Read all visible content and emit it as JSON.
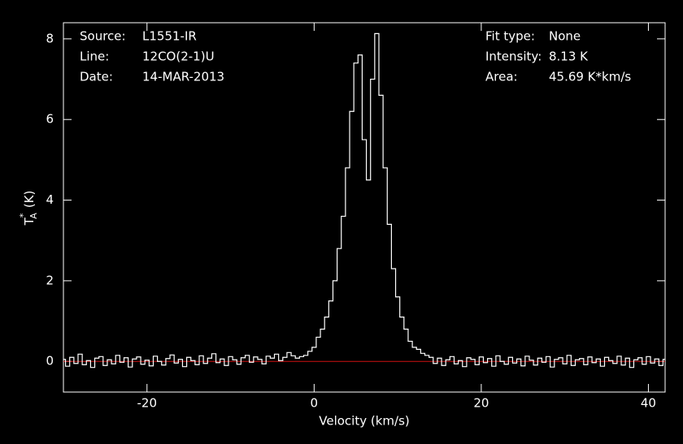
{
  "chart_data": {
    "type": "step",
    "xlabel": "Velocity (km/s)",
    "ylabel": {
      "base": "T",
      "sub": "A",
      "sup": "*",
      "unit": "(K)"
    },
    "annotations_left": [
      {
        "label": "Source:",
        "value": "L1551-IR"
      },
      {
        "label": "Line:",
        "value": "12CO(2-1)U"
      },
      {
        "label": "Date:",
        "value": "14-MAR-2013"
      }
    ],
    "annotations_right": [
      {
        "label": "Fit type:",
        "value": "None"
      },
      {
        "label": "Intensity:",
        "value": "8.13 K"
      },
      {
        "label": "Area:",
        "value": "45.69 K*km/s"
      }
    ],
    "xlim": [
      -30,
      42
    ],
    "ylim": [
      -0.76,
      8.4
    ],
    "xticks": [
      -20,
      0,
      20,
      40
    ],
    "yticks": [
      0,
      2,
      4,
      6,
      8
    ],
    "baseline": {
      "value": 0,
      "color": "#d01010"
    },
    "x": [
      -30,
      -29.5,
      -29,
      -28.5,
      -28,
      -27.5,
      -27,
      -26.5,
      -26,
      -25.5,
      -25,
      -24.5,
      -24,
      -23.5,
      -23,
      -22.5,
      -22,
      -21.5,
      -21,
      -20.5,
      -20,
      -19.5,
      -19,
      -18.5,
      -18,
      -17.5,
      -17,
      -16.5,
      -16,
      -15.5,
      -15,
      -14.5,
      -14,
      -13.5,
      -13,
      -12.5,
      -12,
      -11.5,
      -11,
      -10.5,
      -10,
      -9.5,
      -9,
      -8.5,
      -8,
      -7.5,
      -7,
      -6.5,
      -6,
      -5.5,
      -5,
      -4.5,
      -4,
      -3.5,
      -3,
      -2.5,
      -2,
      -1.5,
      -1,
      -0.5,
      0,
      0.5,
      1,
      1.5,
      2,
      2.5,
      3,
      3.5,
      4,
      4.5,
      5,
      5.5,
      6,
      6.5,
      7,
      7.5,
      8,
      8.5,
      9,
      9.5,
      10,
      10.5,
      11,
      11.5,
      12,
      12.5,
      13,
      13.5,
      14,
      14.5,
      15,
      15.5,
      16,
      16.5,
      17,
      17.5,
      18,
      18.5,
      19,
      19.5,
      20,
      20.5,
      21,
      21.5,
      22,
      22.5,
      23,
      23.5,
      24,
      24.5,
      25,
      25.5,
      26,
      26.5,
      27,
      27.5,
      28,
      28.5,
      29,
      29.5,
      30,
      30.5,
      31,
      31.5,
      32,
      32.5,
      33,
      33.5,
      34,
      34.5,
      35,
      35.5,
      36,
      36.5,
      37,
      37.5,
      38,
      38.5,
      39,
      39.5,
      40,
      40.5,
      41,
      41.5,
      42
    ],
    "series": [
      {
        "color": "#ffffff",
        "values": [
          0.05,
          -0.12,
          0.1,
          -0.05,
          0.18,
          -0.08,
          0.02,
          -0.15,
          0.08,
          0.12,
          -0.1,
          0.04,
          -0.06,
          0.15,
          -0.02,
          0.09,
          -0.14,
          0.06,
          0.11,
          -0.07,
          0.03,
          -0.11,
          0.13,
          0.0,
          -0.09,
          0.07,
          0.16,
          -0.04,
          0.05,
          -0.13,
          0.1,
          0.02,
          -0.08,
          0.14,
          -0.05,
          0.08,
          0.19,
          -0.03,
          0.06,
          -0.1,
          0.12,
          0.04,
          -0.07,
          0.09,
          0.15,
          -0.02,
          0.11,
          0.05,
          -0.06,
          0.13,
          0.08,
          0.18,
          0.02,
          0.1,
          0.22,
          0.14,
          0.08,
          0.12,
          0.15,
          0.25,
          0.35,
          0.6,
          0.8,
          1.1,
          1.5,
          2.0,
          2.8,
          3.6,
          4.8,
          6.2,
          7.4,
          7.6,
          5.5,
          4.5,
          7.0,
          8.13,
          6.6,
          4.8,
          3.4,
          2.3,
          1.6,
          1.1,
          0.8,
          0.5,
          0.35,
          0.3,
          0.2,
          0.15,
          0.1,
          -0.05,
          0.08,
          -0.1,
          0.04,
          0.12,
          -0.06,
          0.02,
          -0.13,
          0.09,
          0.05,
          -0.08,
          0.11,
          -0.03,
          0.07,
          -0.12,
          0.14,
          0.0,
          -0.07,
          0.1,
          -0.04,
          0.06,
          -0.11,
          0.13,
          0.03,
          -0.09,
          0.08,
          -0.02,
          0.12,
          -0.14,
          0.05,
          0.09,
          -0.06,
          0.15,
          -0.1,
          0.04,
          0.07,
          -0.08,
          0.11,
          -0.03,
          0.06,
          -0.12,
          0.1,
          0.02,
          -0.05,
          0.13,
          -0.09,
          0.08,
          -0.15,
          0.04,
          0.09,
          -0.07,
          0.12,
          -0.04,
          0.06,
          -0.1,
          0.05
        ]
      }
    ]
  }
}
